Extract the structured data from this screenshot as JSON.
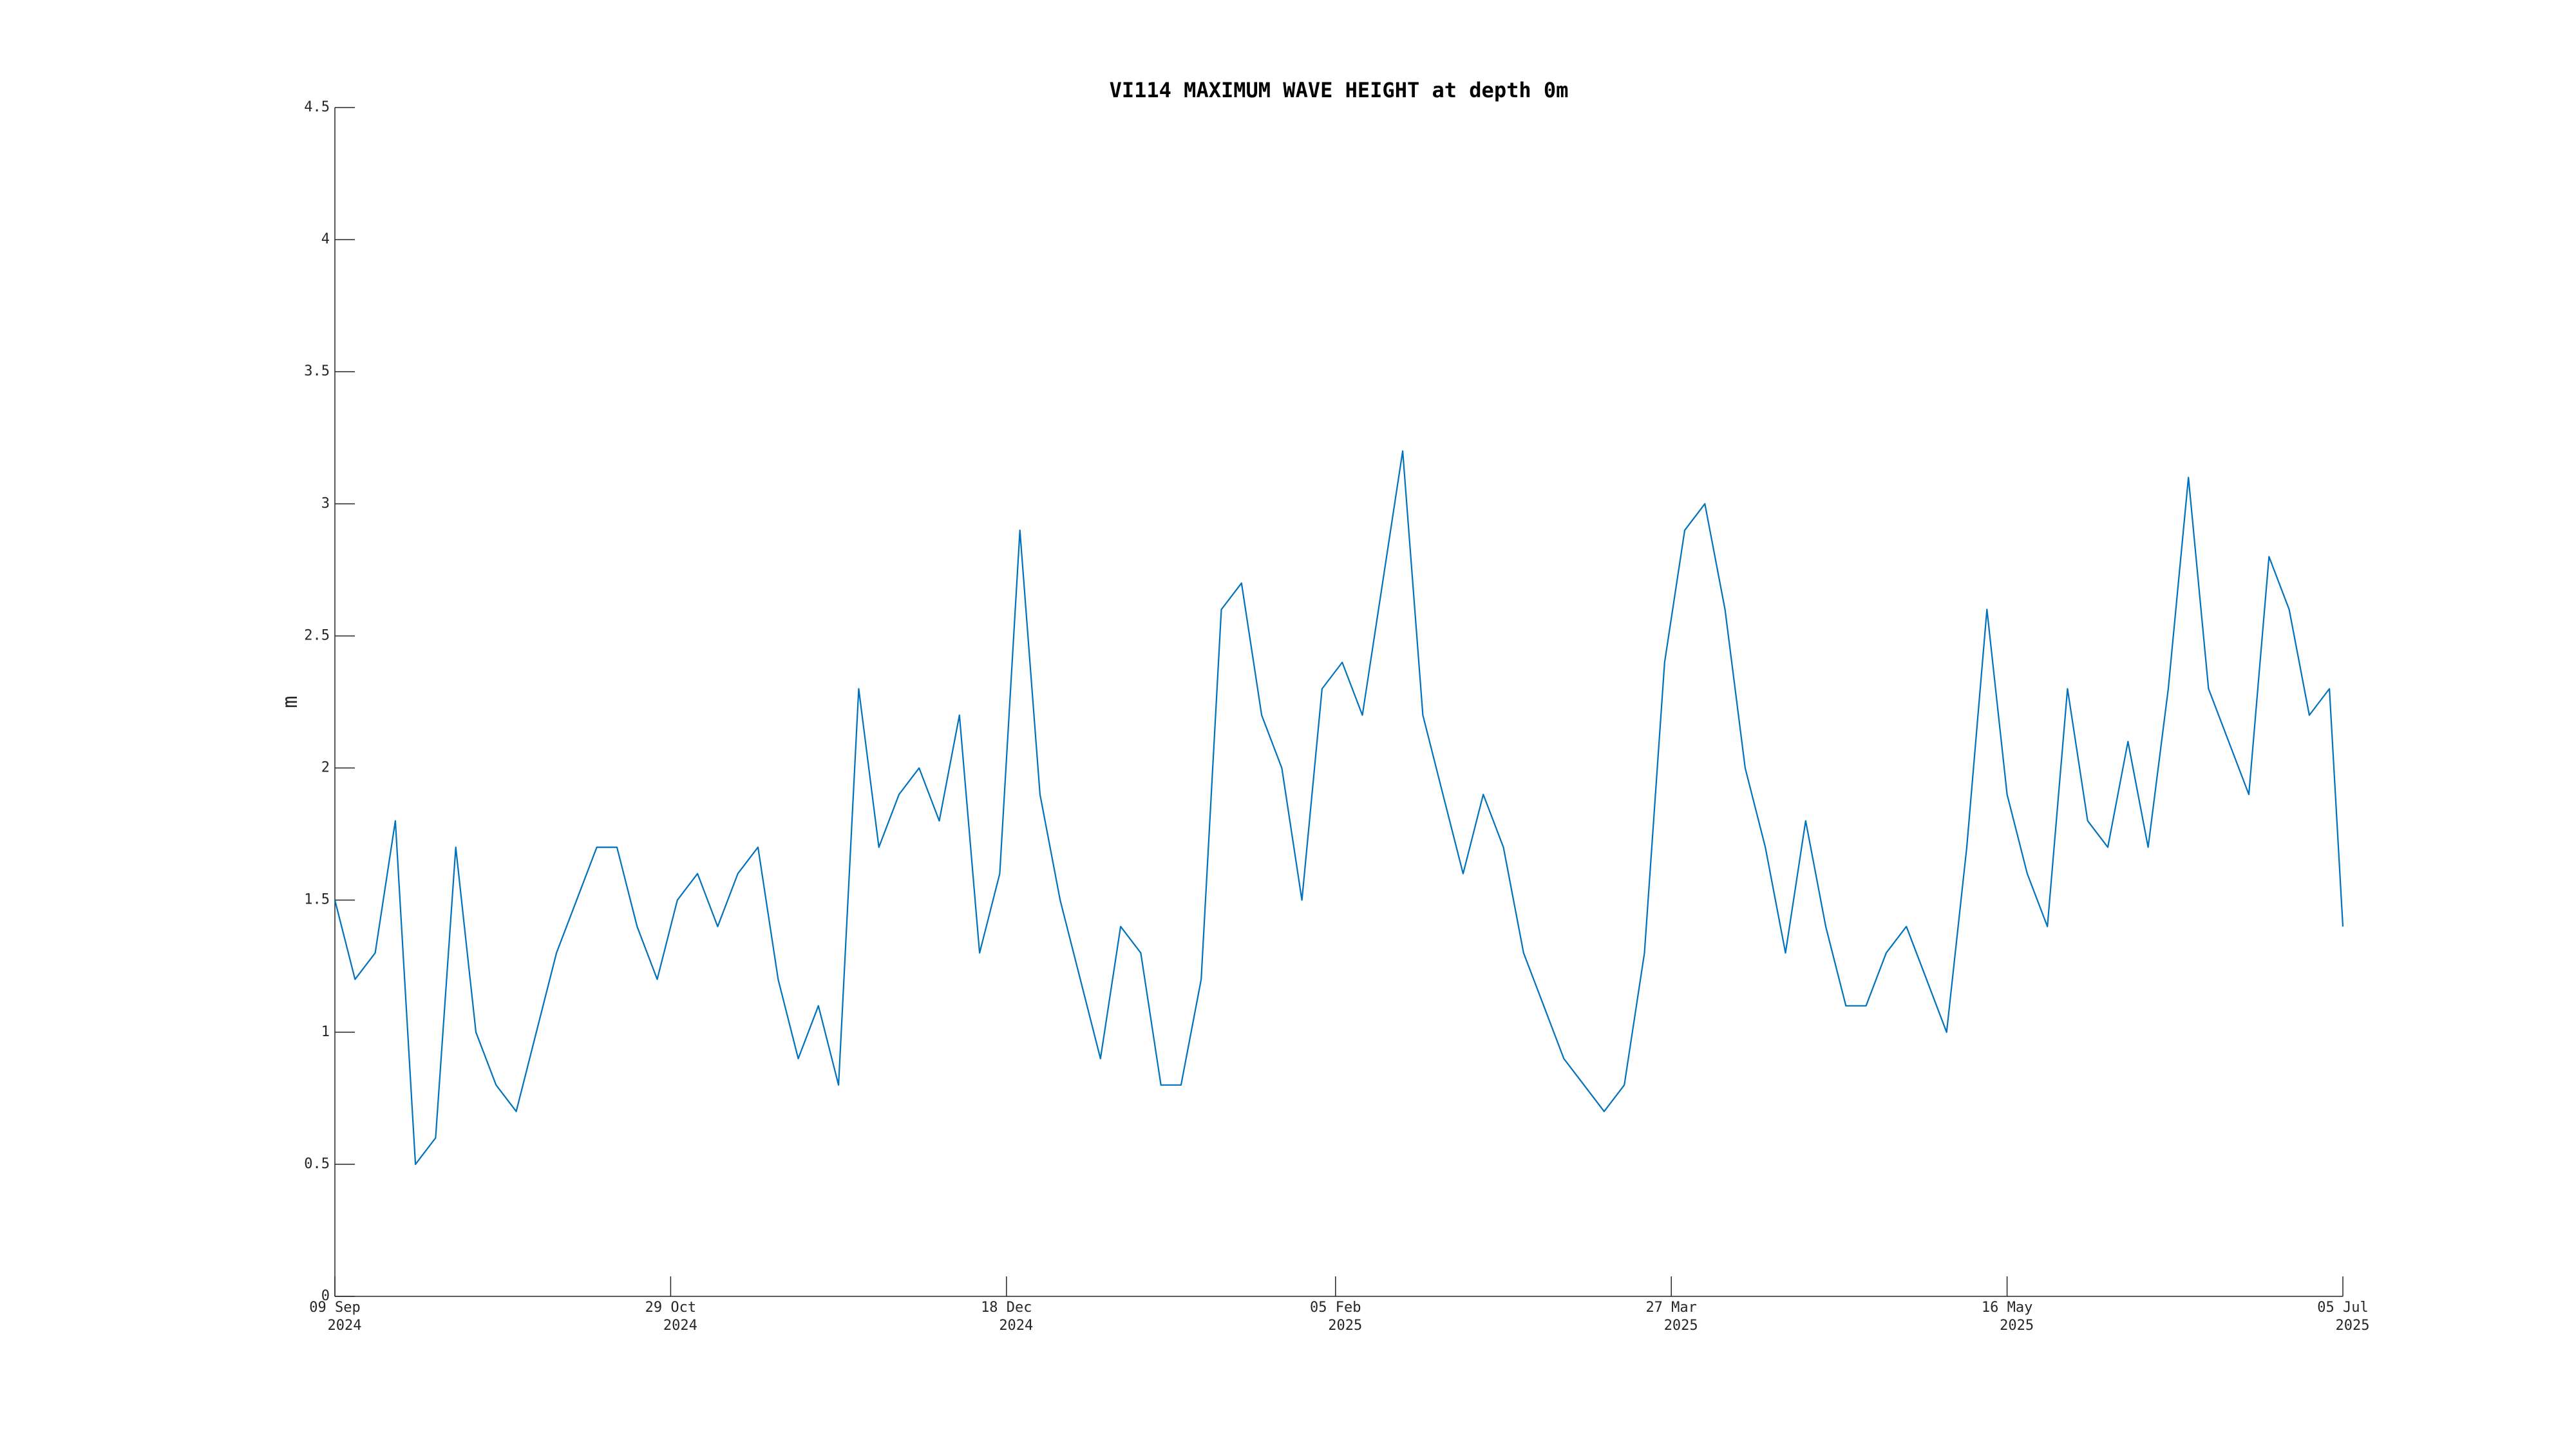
{
  "chart_data": {
    "type": "line",
    "title": "VI114 MAXIMUM WAVE HEIGHT at depth 0m",
    "y_label": "m",
    "x": [
      "2024-09-09",
      "2024-09-12",
      "2024-09-15",
      "2024-09-18",
      "2024-09-21",
      "2024-09-24",
      "2024-09-27",
      "2024-09-30",
      "2024-10-03",
      "2024-10-06",
      "2024-10-09",
      "2024-10-12",
      "2024-10-15",
      "2024-10-18",
      "2024-10-21",
      "2024-10-24",
      "2024-10-27",
      "2024-10-30",
      "2024-11-02",
      "2024-11-05",
      "2024-11-08",
      "2024-11-11",
      "2024-11-14",
      "2024-11-17",
      "2024-11-20",
      "2024-11-23",
      "2024-11-26",
      "2024-11-29",
      "2024-12-02",
      "2024-12-05",
      "2024-12-08",
      "2024-12-11",
      "2024-12-14",
      "2024-12-17",
      "2024-12-20",
      "2024-12-23",
      "2024-12-26",
      "2024-12-29",
      "2025-01-01",
      "2025-01-04",
      "2025-01-07",
      "2025-01-10",
      "2025-01-13",
      "2025-01-16",
      "2025-01-19",
      "2025-01-22",
      "2025-01-25",
      "2025-01-28",
      "2025-01-31",
      "2025-02-03",
      "2025-02-06",
      "2025-02-09",
      "2025-02-12",
      "2025-02-15",
      "2025-02-18",
      "2025-02-21",
      "2025-02-24",
      "2025-02-27",
      "2025-03-02",
      "2025-03-05",
      "2025-03-08",
      "2025-03-11",
      "2025-03-14",
      "2025-03-17",
      "2025-03-20",
      "2025-03-23",
      "2025-03-26",
      "2025-03-29",
      "2025-04-01",
      "2025-04-04",
      "2025-04-07",
      "2025-04-10",
      "2025-04-13",
      "2025-04-16",
      "2025-04-19",
      "2025-04-22",
      "2025-04-25",
      "2025-04-28",
      "2025-05-01",
      "2025-05-04",
      "2025-05-07",
      "2025-05-10",
      "2025-05-13",
      "2025-05-16",
      "2025-05-19",
      "2025-05-22",
      "2025-05-25",
      "2025-05-28",
      "2025-05-31",
      "2025-06-03",
      "2025-06-06",
      "2025-06-09",
      "2025-06-12",
      "2025-06-15",
      "2025-06-18",
      "2025-06-21",
      "2025-06-24",
      "2025-06-27",
      "2025-06-30",
      "2025-07-03",
      "2025-07-05"
    ],
    "series": [
      {
        "color": "#0072bd",
        "values": [
          1.5,
          1.2,
          1.3,
          1.8,
          0.5,
          0.6,
          1.7,
          1.0,
          0.8,
          0.7,
          1.0,
          1.3,
          1.5,
          1.7,
          1.7,
          1.4,
          1.2,
          1.5,
          1.6,
          1.4,
          1.6,
          1.7,
          1.2,
          0.9,
          1.1,
          0.8,
          2.3,
          1.7,
          1.9,
          2.0,
          1.8,
          2.2,
          1.3,
          1.6,
          2.9,
          1.9,
          1.5,
          1.2,
          0.9,
          1.4,
          1.3,
          0.8,
          0.8,
          1.2,
          2.6,
          2.7,
          2.2,
          2.0,
          1.5,
          2.3,
          2.4,
          2.2,
          2.7,
          3.2,
          2.2,
          1.9,
          1.6,
          1.9,
          1.7,
          1.3,
          1.1,
          0.9,
          0.8,
          0.7,
          0.8,
          1.3,
          2.4,
          2.9,
          3.0,
          2.6,
          2.0,
          1.7,
          1.3,
          1.8,
          1.4,
          1.1,
          1.1,
          1.3,
          1.4,
          1.2,
          1.0,
          1.7,
          2.6,
          1.9,
          1.6,
          1.4,
          2.3,
          1.8,
          1.7,
          2.1,
          1.7,
          2.3,
          3.1,
          2.3,
          2.1,
          1.9,
          2.8,
          2.6,
          2.2,
          2.3,
          1.4
        ]
      }
    ],
    "xlim": [
      "2024-09-09",
      "2025-07-05"
    ],
    "xticks": [
      {
        "value": "2024-09-09",
        "label": [
          "09 Sep",
          "2024"
        ]
      },
      {
        "value": "2024-10-29",
        "label": [
          "29 Oct",
          "2024"
        ]
      },
      {
        "value": "2024-12-18",
        "label": [
          "18 Dec",
          "2024"
        ]
      },
      {
        "value": "2025-02-05",
        "label": [
          "05 Feb",
          "2025"
        ]
      },
      {
        "value": "2025-03-27",
        "label": [
          "27 Mar",
          "2025"
        ]
      },
      {
        "value": "2025-05-16",
        "label": [
          "16 May",
          "2025"
        ]
      },
      {
        "value": "2025-07-05",
        "label": [
          "05 Jul",
          "2025"
        ]
      }
    ],
    "ylim": [
      0,
      4.5
    ],
    "yticks": [
      0,
      0.5,
      1,
      1.5,
      2,
      2.5,
      3,
      3.5,
      4,
      4.5
    ]
  }
}
